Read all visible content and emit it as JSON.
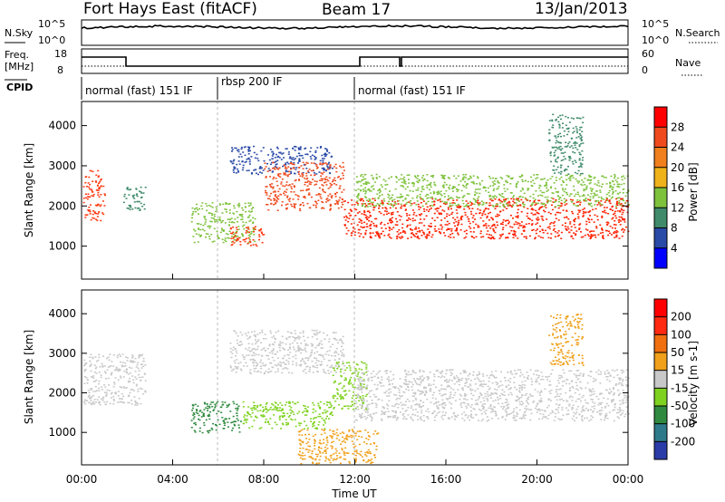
{
  "header": {
    "station": "Fort Hays East (fitACF)",
    "beam": "Beam 17",
    "date": "13/Jan/2013"
  },
  "strip_labels": {
    "nsky": "N.Sky",
    "nsearch": "N.Search",
    "freq_line1": "Freq.",
    "freq_line2": "[MHz]",
    "nave": "Nave",
    "cpid": "CPID",
    "nsky_ticks": [
      "10^5",
      "10^0"
    ],
    "nsearch_ticks": [
      "10^5",
      "10^0"
    ],
    "freq_ticks": [
      "18",
      "8"
    ],
    "nave_ticks": [
      "60",
      "0"
    ]
  },
  "cpid_segments": [
    {
      "label": "normal (fast) 151 IF",
      "start_hour": 0,
      "end_hour": 6
    },
    {
      "label": "rbsp 200 IF",
      "start_hour": 6,
      "end_hour": 12
    },
    {
      "label": "normal (fast) 151 IF",
      "start_hour": 12,
      "end_hour": 24
    }
  ],
  "chart_data": [
    {
      "type": "heatmap",
      "name": "power",
      "ylabel": "Slant Range [km]",
      "xlabel": "Time UT",
      "xlim_hours": [
        0,
        24
      ],
      "ylim": [
        180,
        4600
      ],
      "yticks": [
        1000,
        2000,
        3000,
        4000
      ],
      "xtick_labels": [
        "00:00",
        "04:00",
        "08:00",
        "12:00",
        "16:00",
        "20:00",
        "00:00"
      ],
      "colorbar": {
        "label": "Power [dB]",
        "ticks": [
          "4",
          "8",
          "12",
          "16",
          "20",
          "24",
          "28"
        ],
        "colors": [
          "#0000ff",
          "#2a4aa8",
          "#3f8a6a",
          "#7ec23c",
          "#f0b21a",
          "#f07f1d",
          "#ef4a1e",
          "#ff0000"
        ]
      }
    },
    {
      "type": "heatmap",
      "name": "velocity",
      "ylabel": "Slant Range [km]",
      "xlabel": "Time UT",
      "xlim_hours": [
        0,
        24
      ],
      "ylim": [
        180,
        4600
      ],
      "yticks": [
        1000,
        2000,
        3000,
        4000
      ],
      "xtick_labels": [
        "00:00",
        "04:00",
        "08:00",
        "12:00",
        "16:00",
        "20:00",
        "00:00"
      ],
      "colorbar": {
        "label": "Velocity [m s-1]",
        "ticks": [
          "200",
          "100",
          "50",
          "15",
          "-15",
          "-50",
          "-100",
          "-200"
        ],
        "colors": [
          "#2a3ca8",
          "#2f7a8a",
          "#2f8a3f",
          "#7ed21f",
          "#c8c8c8",
          "#f0a01a",
          "#f07010",
          "#ff2a10",
          "#ff0000"
        ]
      }
    }
  ],
  "scatter_regions": {
    "power": [
      {
        "t": [
          0.05,
          1.0
        ],
        "r": [
          1650,
          2900
        ],
        "c": "#ff3a10"
      },
      {
        "t": [
          1.8,
          2.8
        ],
        "r": [
          1900,
          2500
        ],
        "c": "#3f8a6a"
      },
      {
        "t": [
          4.8,
          7.6
        ],
        "r": [
          1100,
          2100
        ],
        "c": "#7ec23c"
      },
      {
        "t": [
          6.5,
          8.0
        ],
        "r": [
          1000,
          1500
        ],
        "c": "#ff3a10"
      },
      {
        "t": [
          6.5,
          11.0
        ],
        "r": [
          2800,
          3500
        ],
        "c": "#2a4aa8"
      },
      {
        "t": [
          8.0,
          11.5
        ],
        "r": [
          1900,
          3100
        ],
        "c": "#ef4a1e"
      },
      {
        "t": [
          11.5,
          24.0
        ],
        "r": [
          1200,
          2200
        ],
        "c": "#ff2000"
      },
      {
        "t": [
          12.0,
          24.0
        ],
        "r": [
          2000,
          2800
        ],
        "c": "#7ec23c"
      },
      {
        "t": [
          20.5,
          22.0
        ],
        "r": [
          2800,
          4300
        ],
        "c": "#3f8a6a"
      }
    ],
    "velocity": [
      {
        "t": [
          0.05,
          2.8
        ],
        "r": [
          1700,
          3000
        ],
        "c": "#c8c8c8"
      },
      {
        "t": [
          4.8,
          7.0
        ],
        "r": [
          1000,
          1800
        ],
        "c": "#2f8a3f"
      },
      {
        "t": [
          7.0,
          11.0
        ],
        "r": [
          1100,
          1800
        ],
        "c": "#7ed21f"
      },
      {
        "t": [
          6.5,
          11.5
        ],
        "r": [
          2500,
          3600
        ],
        "c": "#c8c8c8"
      },
      {
        "t": [
          11.0,
          12.5
        ],
        "r": [
          1600,
          2800
        ],
        "c": "#7ed21f"
      },
      {
        "t": [
          12.0,
          24.0
        ],
        "r": [
          1300,
          2600
        ],
        "c": "#c8c8c8"
      },
      {
        "t": [
          20.5,
          22.0
        ],
        "r": [
          2700,
          4000
        ],
        "c": "#f0a01a"
      },
      {
        "t": [
          9.5,
          13.0
        ],
        "r": [
          200,
          1100
        ],
        "c": "#f0a01a"
      }
    ]
  }
}
